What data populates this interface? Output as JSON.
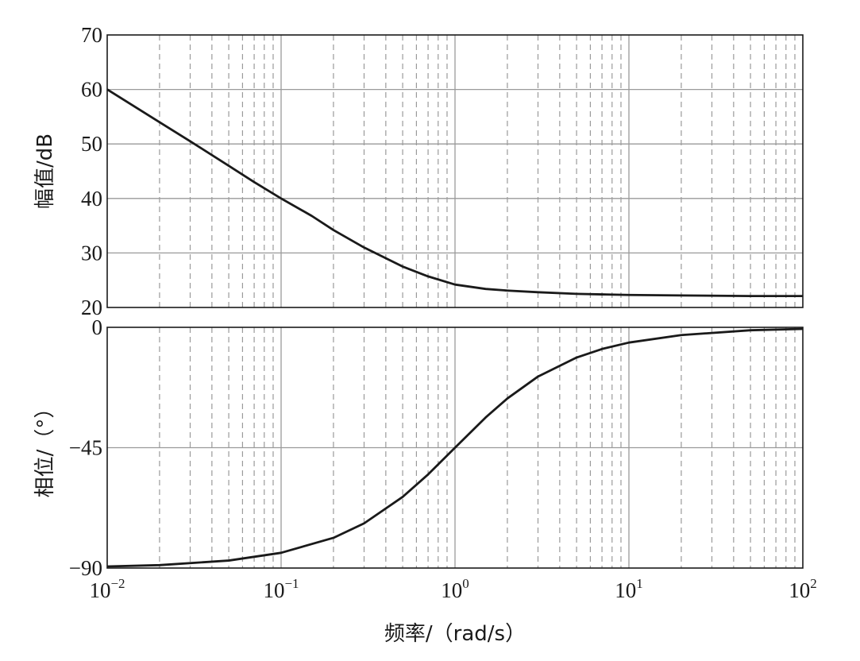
{
  "chart_data": [
    {
      "type": "line",
      "panel": "magnitude",
      "ylabel": "幅值/dB",
      "xscale": "log",
      "xlim": [
        0.01,
        100
      ],
      "ylim": [
        20,
        70
      ],
      "yticks": [
        20,
        30,
        40,
        50,
        60,
        70
      ],
      "ytick_labels": [
        "20",
        "30",
        "40",
        "50",
        "60",
        "70"
      ],
      "grid": "major solid, minor dashed",
      "series": [
        {
          "x": [
            0.01,
            0.02,
            0.03,
            0.05,
            0.07,
            0.1,
            0.15,
            0.2,
            0.3,
            0.5,
            0.7,
            1,
            1.5,
            2,
            3,
            5,
            7,
            10,
            20,
            50,
            100
          ],
          "y": [
            60,
            54,
            50.5,
            46,
            43,
            40,
            36.8,
            34.2,
            31,
            27.5,
            25.7,
            24.2,
            23.4,
            23.1,
            22.8,
            22.5,
            22.4,
            22.3,
            22.2,
            22.1,
            22.1
          ]
        }
      ]
    },
    {
      "type": "line",
      "panel": "phase",
      "ylabel": "相位/（°）",
      "xlabel": "频率/（rad/s）",
      "xscale": "log",
      "xlim": [
        0.01,
        100
      ],
      "ylim": [
        -90,
        0
      ],
      "yticks": [
        -90,
        -45,
        0
      ],
      "ytick_labels": [
        "−90",
        "−45",
        "0"
      ],
      "xticks": [
        0.01,
        0.1,
        1,
        10,
        100
      ],
      "xtick_labels": [
        {
          "base": "10",
          "exp": "−2"
        },
        {
          "base": "10",
          "exp": "−1"
        },
        {
          "base": "10",
          "exp": "0"
        },
        {
          "base": "10",
          "exp": "1"
        },
        {
          "base": "10",
          "exp": "2"
        }
      ],
      "grid": "major solid, minor dashed",
      "series": [
        {
          "x": [
            0.01,
            0.02,
            0.05,
            0.1,
            0.2,
            0.3,
            0.5,
            0.7,
            1,
            1.5,
            2,
            3,
            5,
            7,
            10,
            20,
            50,
            100
          ],
          "y": [
            -89.4,
            -88.9,
            -87.2,
            -84.3,
            -78.7,
            -73.3,
            -63.4,
            -55,
            -45,
            -33.7,
            -26.6,
            -18.4,
            -11.3,
            -8.1,
            -5.7,
            -2.9,
            -1.1,
            -0.6
          ]
        }
      ]
    }
  ]
}
